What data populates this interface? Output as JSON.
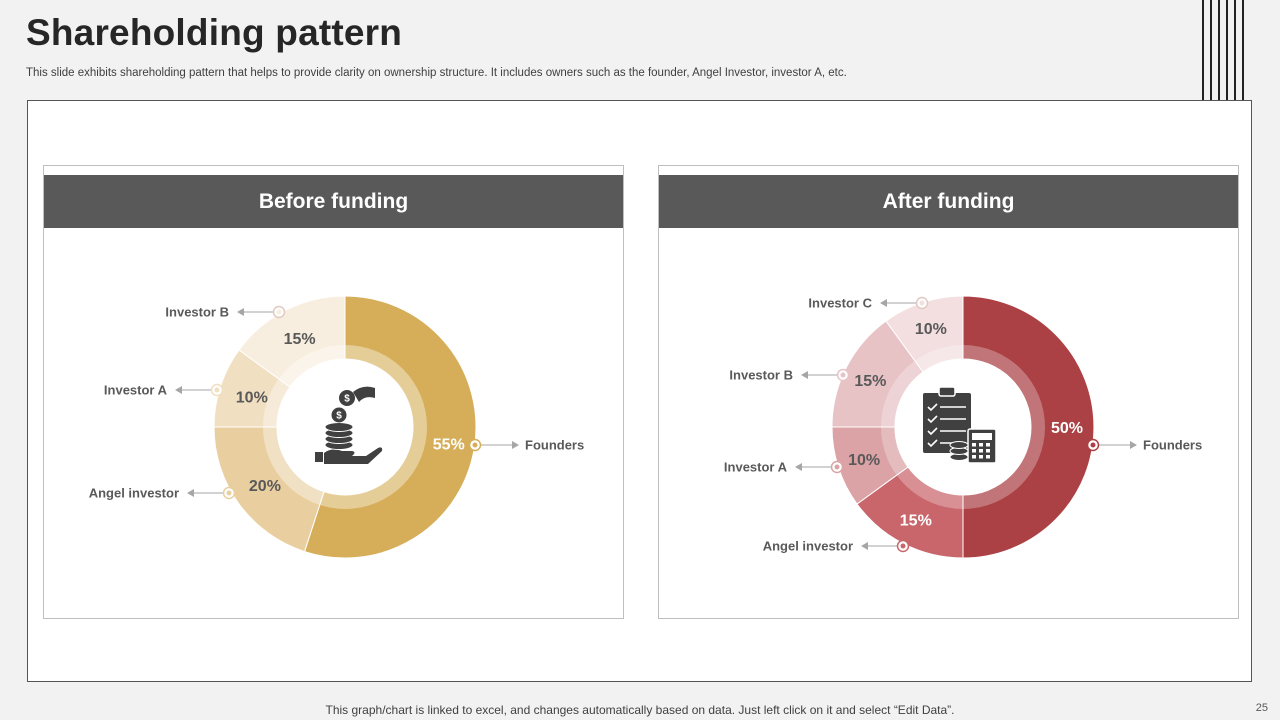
{
  "page": {
    "title": "Shareholding pattern",
    "subtitle": "This slide exhibits shareholding pattern that helps to provide clarity on ownership structure. It includes owners such as the founder, Angel Investor, investor A, etc.",
    "footer": "This graph/chart is linked to excel, and changes automatically based on data. Just left click on it and select “Edit Data”.",
    "page_number": "25"
  },
  "chart_data": [
    {
      "type": "pie",
      "variant": "donut",
      "title": "Before funding",
      "center_icon": "money-hand-icon",
      "categories": [
        "Founders",
        "Angel investor",
        "Investor A",
        "Investor B"
      ],
      "values": [
        55,
        20,
        10,
        15
      ],
      "value_labels": [
        "55%",
        "20%",
        "10%",
        "15%"
      ],
      "colors": [
        "#d6ae5a",
        "#e9cfa0",
        "#f1dfc1",
        "#f8eedf"
      ],
      "label_colors": [
        "#ffffff",
        "#595959",
        "#595959",
        "#595959"
      ],
      "inner_ring_color": "#ffffff",
      "legend": "callouts"
    },
    {
      "type": "pie",
      "variant": "donut",
      "title": "After funding",
      "center_icon": "clipboard-calculator-icon",
      "categories": [
        "Founders",
        "Angel investor",
        "Investor A",
        "Investor B",
        "Investor C"
      ],
      "values": [
        50,
        15,
        10,
        15,
        10
      ],
      "value_labels": [
        "50%",
        "15%",
        "10%",
        "15%",
        "10%"
      ],
      "colors": [
        "#ab4144",
        "#c9666b",
        "#dca3a6",
        "#e8c3c6",
        "#f3dfe0"
      ],
      "label_colors": [
        "#ffffff",
        "#ffffff",
        "#595959",
        "#595959",
        "#595959"
      ],
      "inner_ring_color": "#ffffff",
      "legend": "callouts"
    }
  ]
}
